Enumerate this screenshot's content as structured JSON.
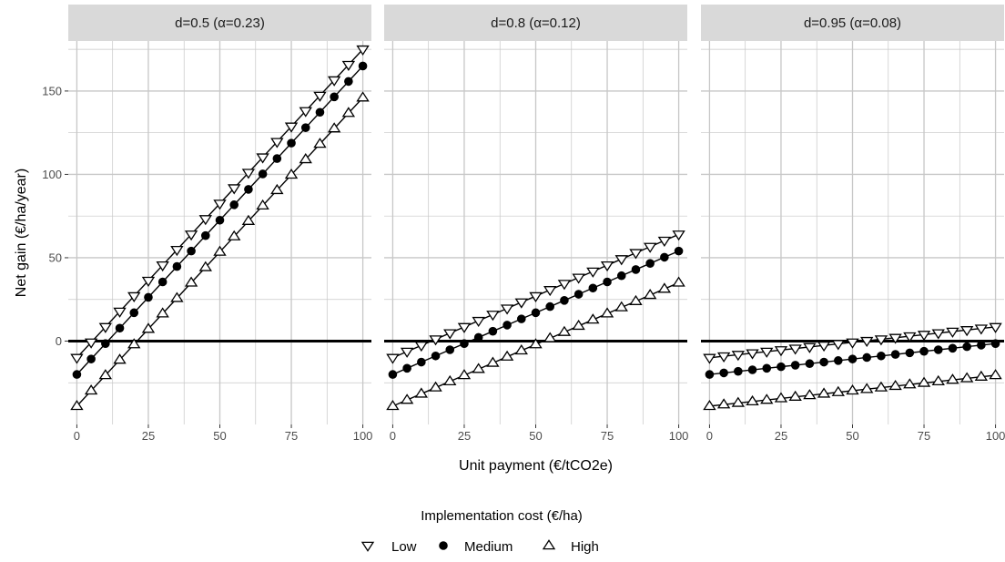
{
  "chart_data": {
    "type": "line",
    "xlabel": "Unit payment (€/tCO2e)",
    "ylabel": "Net gain (€/ha/year)",
    "xlim": [
      -3,
      103
    ],
    "ylim": [
      -50,
      180
    ],
    "x_ticks": [
      0,
      25,
      50,
      75,
      100
    ],
    "y_ticks": [
      0,
      50,
      100,
      150
    ],
    "grid": true,
    "colors": {
      "strip_bg": "#d9d9d9",
      "panel_bg": "#ffffff",
      "grid": "#c7c7c7",
      "line": "#000000",
      "zero_line": "#000000"
    },
    "x": [
      0,
      5,
      10,
      15,
      20,
      25,
      30,
      35,
      40,
      45,
      50,
      55,
      60,
      65,
      70,
      75,
      80,
      85,
      90,
      95,
      100
    ],
    "legend": {
      "title": "Implementation cost (€/ha)",
      "position": "bottom",
      "items": [
        {
          "name": "Low",
          "marker": "triangle-down"
        },
        {
          "name": "Medium",
          "marker": "circle"
        },
        {
          "name": "High",
          "marker": "triangle-up"
        }
      ]
    },
    "panels": [
      {
        "label": "d=0.5 (α=0.23)",
        "series": [
          {
            "name": "Low",
            "marker": "triangle-down",
            "intercept": -10,
            "slope": 1.85
          },
          {
            "name": "Medium",
            "marker": "circle",
            "intercept": -20,
            "slope": 1.85
          },
          {
            "name": "High",
            "marker": "triangle-up",
            "intercept": -39,
            "slope": 1.85
          }
        ]
      },
      {
        "label": "d=0.8 (α=0.12)",
        "series": [
          {
            "name": "Low",
            "marker": "triangle-down",
            "intercept": -10,
            "slope": 0.74
          },
          {
            "name": "Medium",
            "marker": "circle",
            "intercept": -20,
            "slope": 0.74
          },
          {
            "name": "High",
            "marker": "triangle-up",
            "intercept": -39,
            "slope": 0.74
          }
        ]
      },
      {
        "label": "d=0.95 (α=0.08)",
        "series": [
          {
            "name": "Low",
            "marker": "triangle-down",
            "intercept": -10,
            "slope": 0.185
          },
          {
            "name": "Medium",
            "marker": "circle",
            "intercept": -20,
            "slope": 0.185
          },
          {
            "name": "High",
            "marker": "triangle-up",
            "intercept": -39,
            "slope": 0.185
          }
        ]
      }
    ]
  }
}
